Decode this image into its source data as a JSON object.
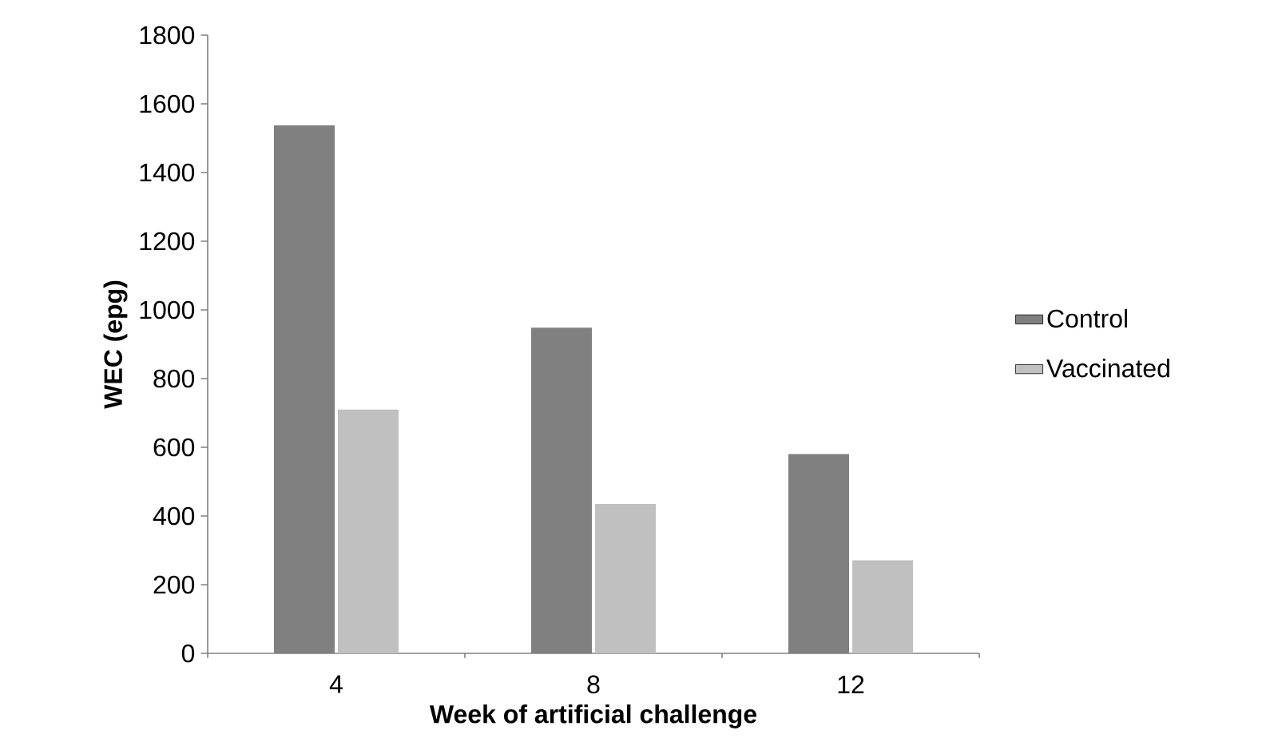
{
  "chart_data": {
    "type": "bar",
    "xlabel": "Week of artificial challenge",
    "ylabel": "WEC (epg)",
    "categories": [
      "4",
      "8",
      "12"
    ],
    "series": [
      {
        "name": "Control",
        "color": "#808080",
        "values": [
          1538,
          948,
          580
        ]
      },
      {
        "name": "Vaccinated",
        "color": "#c0c0c0",
        "values": [
          710,
          435,
          271
        ]
      }
    ],
    "ylim": [
      0,
      1800
    ],
    "yticks": [
      0,
      200,
      400,
      600,
      800,
      1000,
      1200,
      1400,
      1600,
      1800
    ],
    "grid": false,
    "legend": "right"
  }
}
